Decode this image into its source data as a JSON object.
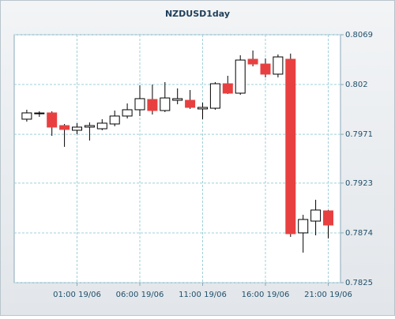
{
  "chart_data": {
    "type": "candlestick",
    "title": "NZDUSD1day",
    "categories": [
      null,
      null,
      null,
      null,
      "01:00 19/06",
      null,
      null,
      null,
      null,
      "06:00 19/06",
      null,
      null,
      null,
      null,
      "11:00 19/06",
      null,
      null,
      null,
      null,
      "16:00 19/06",
      null,
      null,
      null,
      null,
      "21:00 19/06"
    ],
    "open": [
      0.79859,
      0.79915,
      0.79921,
      0.79796,
      0.7975,
      0.79781,
      0.79765,
      0.79812,
      0.7989,
      0.79952,
      0.80053,
      0.79944,
      0.80045,
      0.80045,
      0.7996,
      0.79967,
      0.80208,
      0.80115,
      0.80449,
      0.80402,
      0.80302,
      0.80449,
      0.7874,
      0.78856,
      0.78957
    ],
    "high": [
      0.79952,
      0.79937,
      0.79936,
      0.79812,
      0.7982,
      0.79827,
      0.79859,
      0.79944,
      0.80014,
      0.80193,
      0.802,
      0.80224,
      0.80162,
      0.80146,
      0.80022,
      0.80224,
      0.80286,
      0.80488,
      0.80535,
      0.80457,
      0.80496,
      0.80504,
      0.78918,
      0.79066,
      0.78965
    ],
    "low": [
      0.79835,
      0.79882,
      0.79695,
      0.79587,
      0.79711,
      0.79649,
      0.7975,
      0.79789,
      0.79866,
      0.7989,
      0.79905,
      0.79929,
      0.80006,
      0.7996,
      0.79859,
      0.79952,
      0.80107,
      0.80099,
      0.80379,
      0.8027,
      0.8027,
      0.78701,
      0.78546,
      0.78716,
      0.78685
    ],
    "close": [
      0.79921,
      0.7992,
      0.79781,
      0.79758,
      0.79781,
      0.79796,
      0.7982,
      0.7989,
      0.79952,
      0.80061,
      0.79944,
      0.80068,
      0.80061,
      0.79975,
      0.79975,
      0.80208,
      0.80115,
      0.80441,
      0.80402,
      0.80302,
      0.80472,
      0.78732,
      0.78872,
      0.78965,
      0.78817
    ],
    "up_color": "#ffffff",
    "down_color": "#e84040",
    "outline_color": "#000000",
    "ylim": [
      0.7825,
      0.8069
    ],
    "yticks": [
      0.7825,
      0.7874,
      0.7923,
      0.7971,
      0.802,
      0.8069
    ],
    "grid": true
  }
}
